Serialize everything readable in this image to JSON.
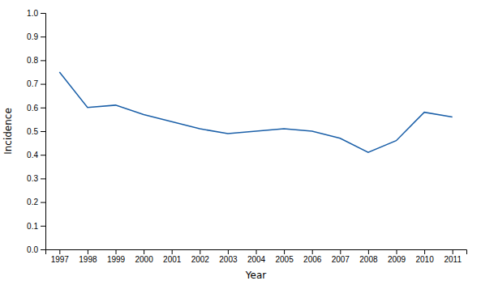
{
  "chart_data": {
    "type": "line",
    "x": [
      1997,
      1998,
      1999,
      2000,
      2001,
      2002,
      2003,
      2004,
      2005,
      2006,
      2007,
      2008,
      2009,
      2010,
      2011
    ],
    "values": [
      0.75,
      0.6,
      0.61,
      0.57,
      0.54,
      0.51,
      0.49,
      0.5,
      0.51,
      0.5,
      0.47,
      0.41,
      0.46,
      0.58,
      0.56
    ],
    "color": "#1A5FA8",
    "xlabel": "Year",
    "ylabel": "Incidence",
    "xlim": [
      1996.5,
      2011.5
    ],
    "ylim": [
      0.0,
      1.0
    ],
    "xticks": [
      1997,
      1998,
      1999,
      2000,
      2001,
      2002,
      2003,
      2004,
      2005,
      2006,
      2007,
      2008,
      2009,
      2010,
      2011
    ],
    "yticks": [
      {
        "value": 0.0,
        "label": "0.0"
      },
      0.1,
      0.2,
      0.3,
      0.4,
      0.5,
      0.6,
      0.7,
      0.8,
      0.9,
      {
        "value": 1.0,
        "label": "1.0"
      }
    ]
  }
}
